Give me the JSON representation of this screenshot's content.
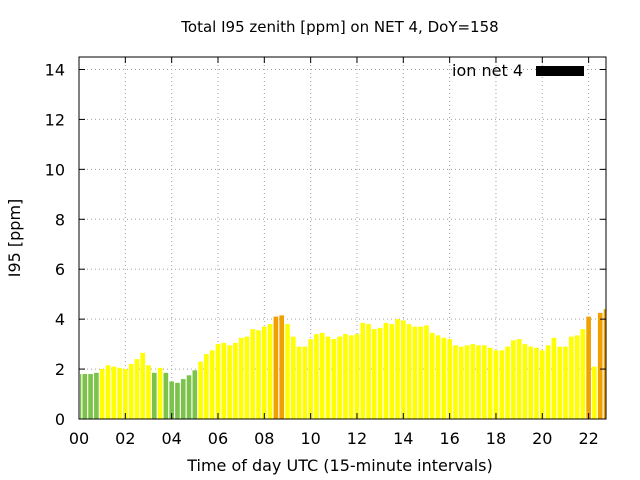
{
  "chart_data": {
    "type": "bar",
    "title": "Total I95 zenith [ppm] on NET 4, DoY=158",
    "xlabel": "Time of day UTC (15-minute intervals)",
    "ylabel": "I95 [ppm]",
    "xlim": [
      0,
      22.75
    ],
    "ylim": [
      0,
      14.5
    ],
    "xticks": [
      0,
      2,
      4,
      6,
      8,
      10,
      12,
      14,
      16,
      18,
      20,
      22
    ],
    "xtick_labels": [
      "00",
      "02",
      "04",
      "06",
      "08",
      "10",
      "12",
      "14",
      "16",
      "18",
      "20",
      "22"
    ],
    "yticks": [
      0,
      2,
      4,
      6,
      8,
      10,
      12,
      14
    ],
    "ytick_labels": [
      "0",
      "2",
      "4",
      "6",
      "8",
      "10",
      "12",
      "14"
    ],
    "grid": true,
    "legend": {
      "label": "ion net 4",
      "placement": "top-right",
      "color": "#000000"
    },
    "colors": {
      "green": "#7cc34a",
      "yellow": "#ffff00",
      "orange": "#f0a000"
    },
    "bar_width_hours": 0.2,
    "series": [
      {
        "x": [
          0.0,
          0.25,
          0.5,
          0.75,
          1.0,
          1.25,
          1.5,
          1.75,
          2.0,
          2.25,
          2.5,
          2.75,
          3.0,
          3.25,
          3.5,
          3.75,
          4.0,
          4.25,
          4.5,
          4.75,
          5.0,
          5.25,
          5.5,
          5.75,
          6.0,
          6.25,
          6.5,
          6.75,
          7.0,
          7.25,
          7.5,
          7.75,
          8.0,
          8.25,
          8.5,
          8.75,
          9.0,
          9.25,
          9.5,
          9.75,
          10.0,
          10.25,
          10.5,
          10.75,
          11.0,
          11.25,
          11.5,
          11.75,
          12.0,
          12.25,
          12.5,
          12.75,
          13.0,
          13.25,
          13.5,
          13.75,
          14.0,
          14.25,
          14.5,
          14.75,
          15.0,
          15.25,
          15.5,
          15.75,
          16.0,
          16.25,
          16.5,
          16.75,
          17.0,
          17.25,
          17.5,
          17.75,
          18.0,
          18.25,
          18.5,
          18.75,
          19.0,
          19.25,
          19.5,
          19.75,
          20.0,
          20.25,
          20.5,
          20.75,
          21.0,
          21.25,
          21.5,
          21.75,
          22.0,
          22.25,
          22.5,
          22.75
        ],
        "values": [
          1.8,
          1.8,
          1.8,
          1.85,
          2.0,
          2.15,
          2.1,
          2.05,
          2.0,
          2.2,
          2.4,
          2.65,
          2.15,
          1.85,
          2.05,
          1.85,
          1.5,
          1.45,
          1.6,
          1.75,
          1.95,
          2.3,
          2.6,
          2.75,
          3.0,
          3.05,
          2.95,
          3.05,
          3.25,
          3.3,
          3.6,
          3.55,
          3.7,
          3.8,
          4.1,
          4.15,
          3.8,
          3.3,
          2.9,
          2.9,
          3.2,
          3.4,
          3.45,
          3.3,
          3.2,
          3.3,
          3.4,
          3.35,
          3.4,
          3.85,
          3.8,
          3.6,
          3.65,
          3.85,
          3.8,
          4.0,
          3.95,
          3.8,
          3.7,
          3.7,
          3.75,
          3.45,
          3.35,
          3.25,
          3.2,
          2.95,
          2.9,
          2.95,
          3.0,
          2.95,
          2.95,
          2.85,
          2.75,
          2.75,
          2.9,
          3.15,
          3.2,
          3.0,
          2.9,
          2.85,
          2.75,
          2.95,
          3.25,
          2.9,
          2.9,
          3.3,
          3.35,
          3.6,
          4.1,
          2.1,
          4.25,
          4.4
        ],
        "colors": [
          "green",
          "green",
          "green",
          "green",
          "yellow",
          "yellow",
          "yellow",
          "yellow",
          "yellow",
          "yellow",
          "yellow",
          "yellow",
          "yellow",
          "green",
          "yellow",
          "green",
          "green",
          "green",
          "green",
          "green",
          "green",
          "yellow",
          "yellow",
          "yellow",
          "yellow",
          "yellow",
          "yellow",
          "yellow",
          "yellow",
          "yellow",
          "yellow",
          "yellow",
          "yellow",
          "yellow",
          "orange",
          "orange",
          "yellow",
          "yellow",
          "yellow",
          "yellow",
          "yellow",
          "yellow",
          "yellow",
          "yellow",
          "yellow",
          "yellow",
          "yellow",
          "yellow",
          "yellow",
          "yellow",
          "yellow",
          "yellow",
          "yellow",
          "yellow",
          "yellow",
          "yellow",
          "yellow",
          "yellow",
          "yellow",
          "yellow",
          "yellow",
          "yellow",
          "yellow",
          "yellow",
          "yellow",
          "yellow",
          "yellow",
          "yellow",
          "yellow",
          "yellow",
          "yellow",
          "yellow",
          "yellow",
          "yellow",
          "yellow",
          "yellow",
          "yellow",
          "yellow",
          "yellow",
          "yellow",
          "yellow",
          "yellow",
          "yellow",
          "yellow",
          "yellow",
          "yellow",
          "yellow",
          "yellow",
          "orange",
          "yellow",
          "orange",
          "orange"
        ]
      }
    ]
  }
}
